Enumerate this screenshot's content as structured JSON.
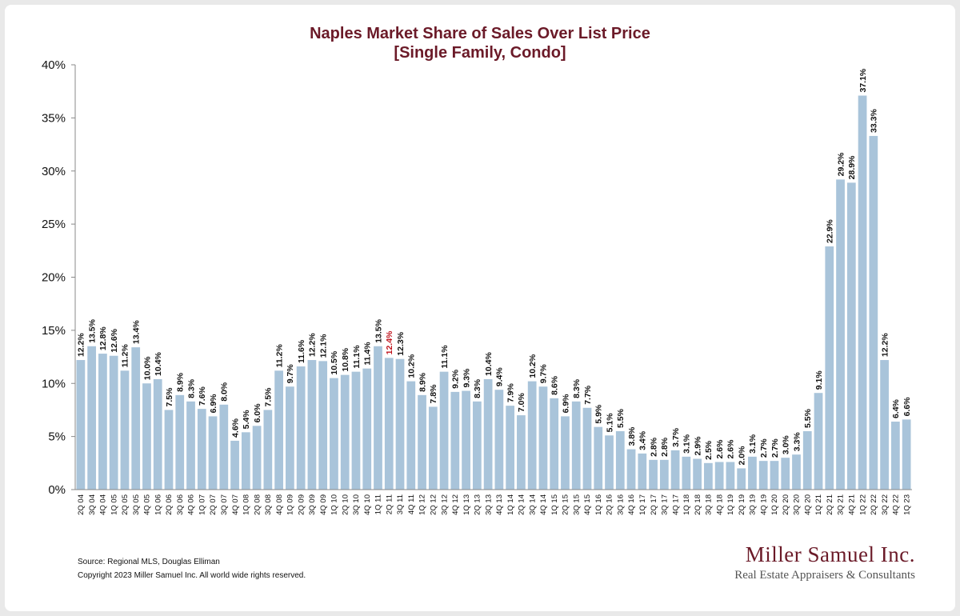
{
  "chart_data": {
    "type": "bar",
    "title": "Naples Market Share of Sales Over List Price",
    "subtitle": "[Single Family, Condo]",
    "ylim": [
      0,
      40
    ],
    "yticks": [
      "0%",
      "5%",
      "10%",
      "15%",
      "20%",
      "25%",
      "30%",
      "35%",
      "40%"
    ],
    "categories": [
      "2Q 04",
      "3Q 04",
      "4Q 04",
      "1Q 05",
      "2Q 05",
      "3Q 05",
      "4Q 05",
      "1Q 06",
      "2Q 06",
      "3Q 06",
      "4Q 06",
      "1Q 07",
      "2Q 07",
      "3Q 07",
      "4Q 07",
      "1Q 08",
      "2Q 08",
      "3Q 08",
      "4Q 08",
      "1Q 09",
      "2Q 09",
      "3Q 09",
      "4Q 09",
      "1Q 10",
      "2Q 10",
      "3Q 10",
      "4Q 10",
      "1Q 11",
      "2Q 11",
      "3Q 11",
      "4Q 11",
      "1Q 12",
      "2Q 12",
      "3Q 12",
      "4Q 12",
      "1Q 13",
      "2Q 13",
      "3Q 13",
      "4Q 13",
      "1Q 14",
      "2Q 14",
      "3Q 14",
      "4Q 14",
      "1Q 15",
      "2Q 15",
      "3Q 15",
      "4Q 15",
      "1Q 16",
      "2Q 16",
      "3Q 16",
      "4Q 16",
      "1Q 17",
      "2Q 17",
      "3Q 17",
      "4Q 17",
      "1Q 18",
      "2Q 18",
      "3Q 18",
      "4Q 18",
      "1Q 19",
      "2Q 19",
      "3Q 19",
      "4Q 19",
      "1Q 20",
      "2Q 20",
      "3Q 20",
      "4Q 20",
      "1Q 21",
      "2Q 21",
      "3Q 21",
      "4Q 21",
      "1Q 22",
      "2Q 22",
      "3Q 22",
      "4Q 22",
      "1Q 23"
    ],
    "values": [
      12.2,
      13.5,
      12.8,
      12.6,
      11.2,
      13.4,
      10.0,
      10.4,
      7.5,
      8.9,
      8.3,
      7.6,
      6.9,
      8.0,
      4.6,
      5.4,
      6.0,
      7.5,
      11.2,
      9.7,
      11.6,
      12.2,
      12.1,
      10.5,
      10.8,
      11.1,
      11.4,
      13.5,
      12.4,
      12.3,
      10.2,
      8.9,
      7.8,
      11.1,
      9.2,
      9.3,
      8.3,
      10.4,
      9.4,
      7.9,
      7.0,
      10.2,
      9.7,
      8.6,
      6.9,
      8.3,
      7.7,
      5.9,
      5.1,
      5.5,
      3.8,
      3.4,
      2.8,
      2.8,
      3.7,
      3.1,
      2.9,
      2.5,
      2.6,
      2.6,
      2.0,
      3.1,
      2.7,
      2.7,
      3.0,
      3.3,
      5.5,
      9.1,
      22.9,
      29.2,
      28.9,
      37.1,
      33.3,
      12.2,
      6.4,
      6.6
    ],
    "data_labels": [
      "12.2%",
      "13.5%",
      "12.8%",
      "12.6%",
      "11.2%",
      "13.4%",
      "10.0%",
      "10.4%",
      "7.5%",
      "8.9%",
      "8.3%",
      "7.6%",
      "6.9%",
      "8.0%",
      "4.6%",
      "5.4%",
      "6.0%",
      "7.5%",
      "11.2%",
      "9.7%",
      "11.6%",
      "12.2%",
      "12.1%",
      "10.5%",
      "10.8%",
      "11.1%",
      "11.4%",
      "13.5%",
      "12.4%",
      "12.3%",
      "10.2%",
      "8.9%",
      "7.8%",
      "11.1%",
      "9.2%",
      "9.3%",
      "8.3%",
      "10.4%",
      "9.4%",
      "7.9%",
      "7.0%",
      "10.2%",
      "9.7%",
      "8.6%",
      "6.9%",
      "8.3%",
      "7.7%",
      "5.9%",
      "5.1%",
      "5.5%",
      "3.8%",
      "3.4%",
      "2.8%",
      "2.8%",
      "3.7%",
      "3.1%",
      "2.9%",
      "2.5%",
      "2.6%",
      "2.6%",
      "2.0%",
      "3.1%",
      "2.7%",
      "2.7%",
      "3.0%",
      "3.3%",
      "5.5%",
      "9.1%",
      "22.9%",
      "29.2%",
      "28.9%",
      "37.1%",
      "33.3%",
      "12.2%",
      "6.4%",
      "6.6%"
    ],
    "highlight_index": 28,
    "grid": false,
    "legend": "none"
  },
  "colors": {
    "bar": "#a9c4da",
    "title": "#6b1a28",
    "highlight_label": "#c0141d"
  },
  "footer": {
    "source": "Source: Regional MLS, Douglas Elliman",
    "copyright": "Copyright 2023 Miller Samuel Inc.  All world wide rights reserved."
  },
  "logo": {
    "name": "Miller Samuel Inc.",
    "tagline": "Real Estate Appraisers & Consultants"
  }
}
